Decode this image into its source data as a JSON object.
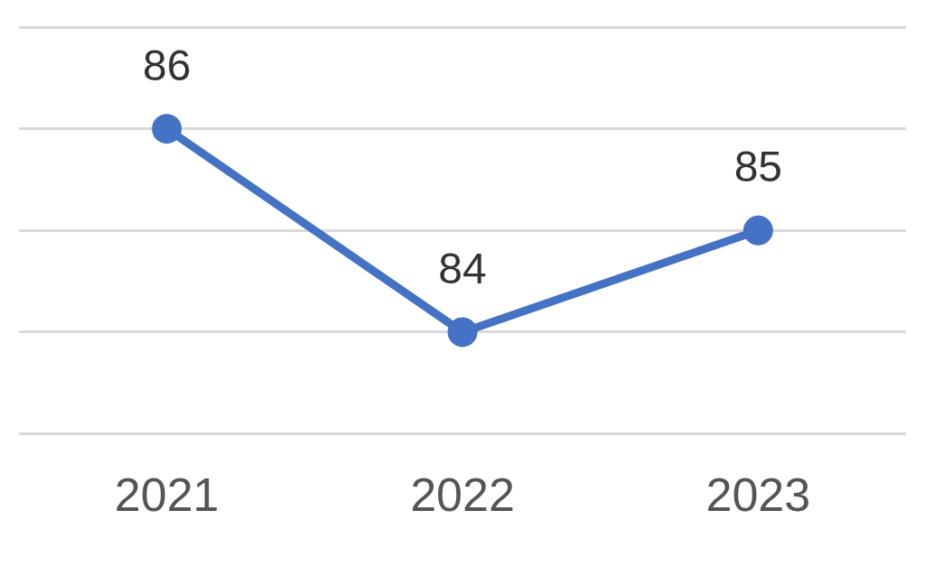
{
  "chart_data": {
    "type": "line",
    "categories": [
      "2021",
      "2022",
      "2023"
    ],
    "series": [
      {
        "color": "#4472c4",
        "values": [
          86,
          84,
          85
        ]
      }
    ],
    "ylim": [
      83,
      87
    ],
    "yticks": [
      {
        "value": 83,
        "label": null
      },
      {
        "value": 84,
        "label": null
      },
      {
        "value": 85,
        "label": null
      },
      {
        "value": 86,
        "label": null
      },
      {
        "value": 87,
        "label": null
      }
    ],
    "grid": "y",
    "tick_labels": "x",
    "data_labels": true,
    "marker": "circle",
    "line_style": "solid"
  }
}
